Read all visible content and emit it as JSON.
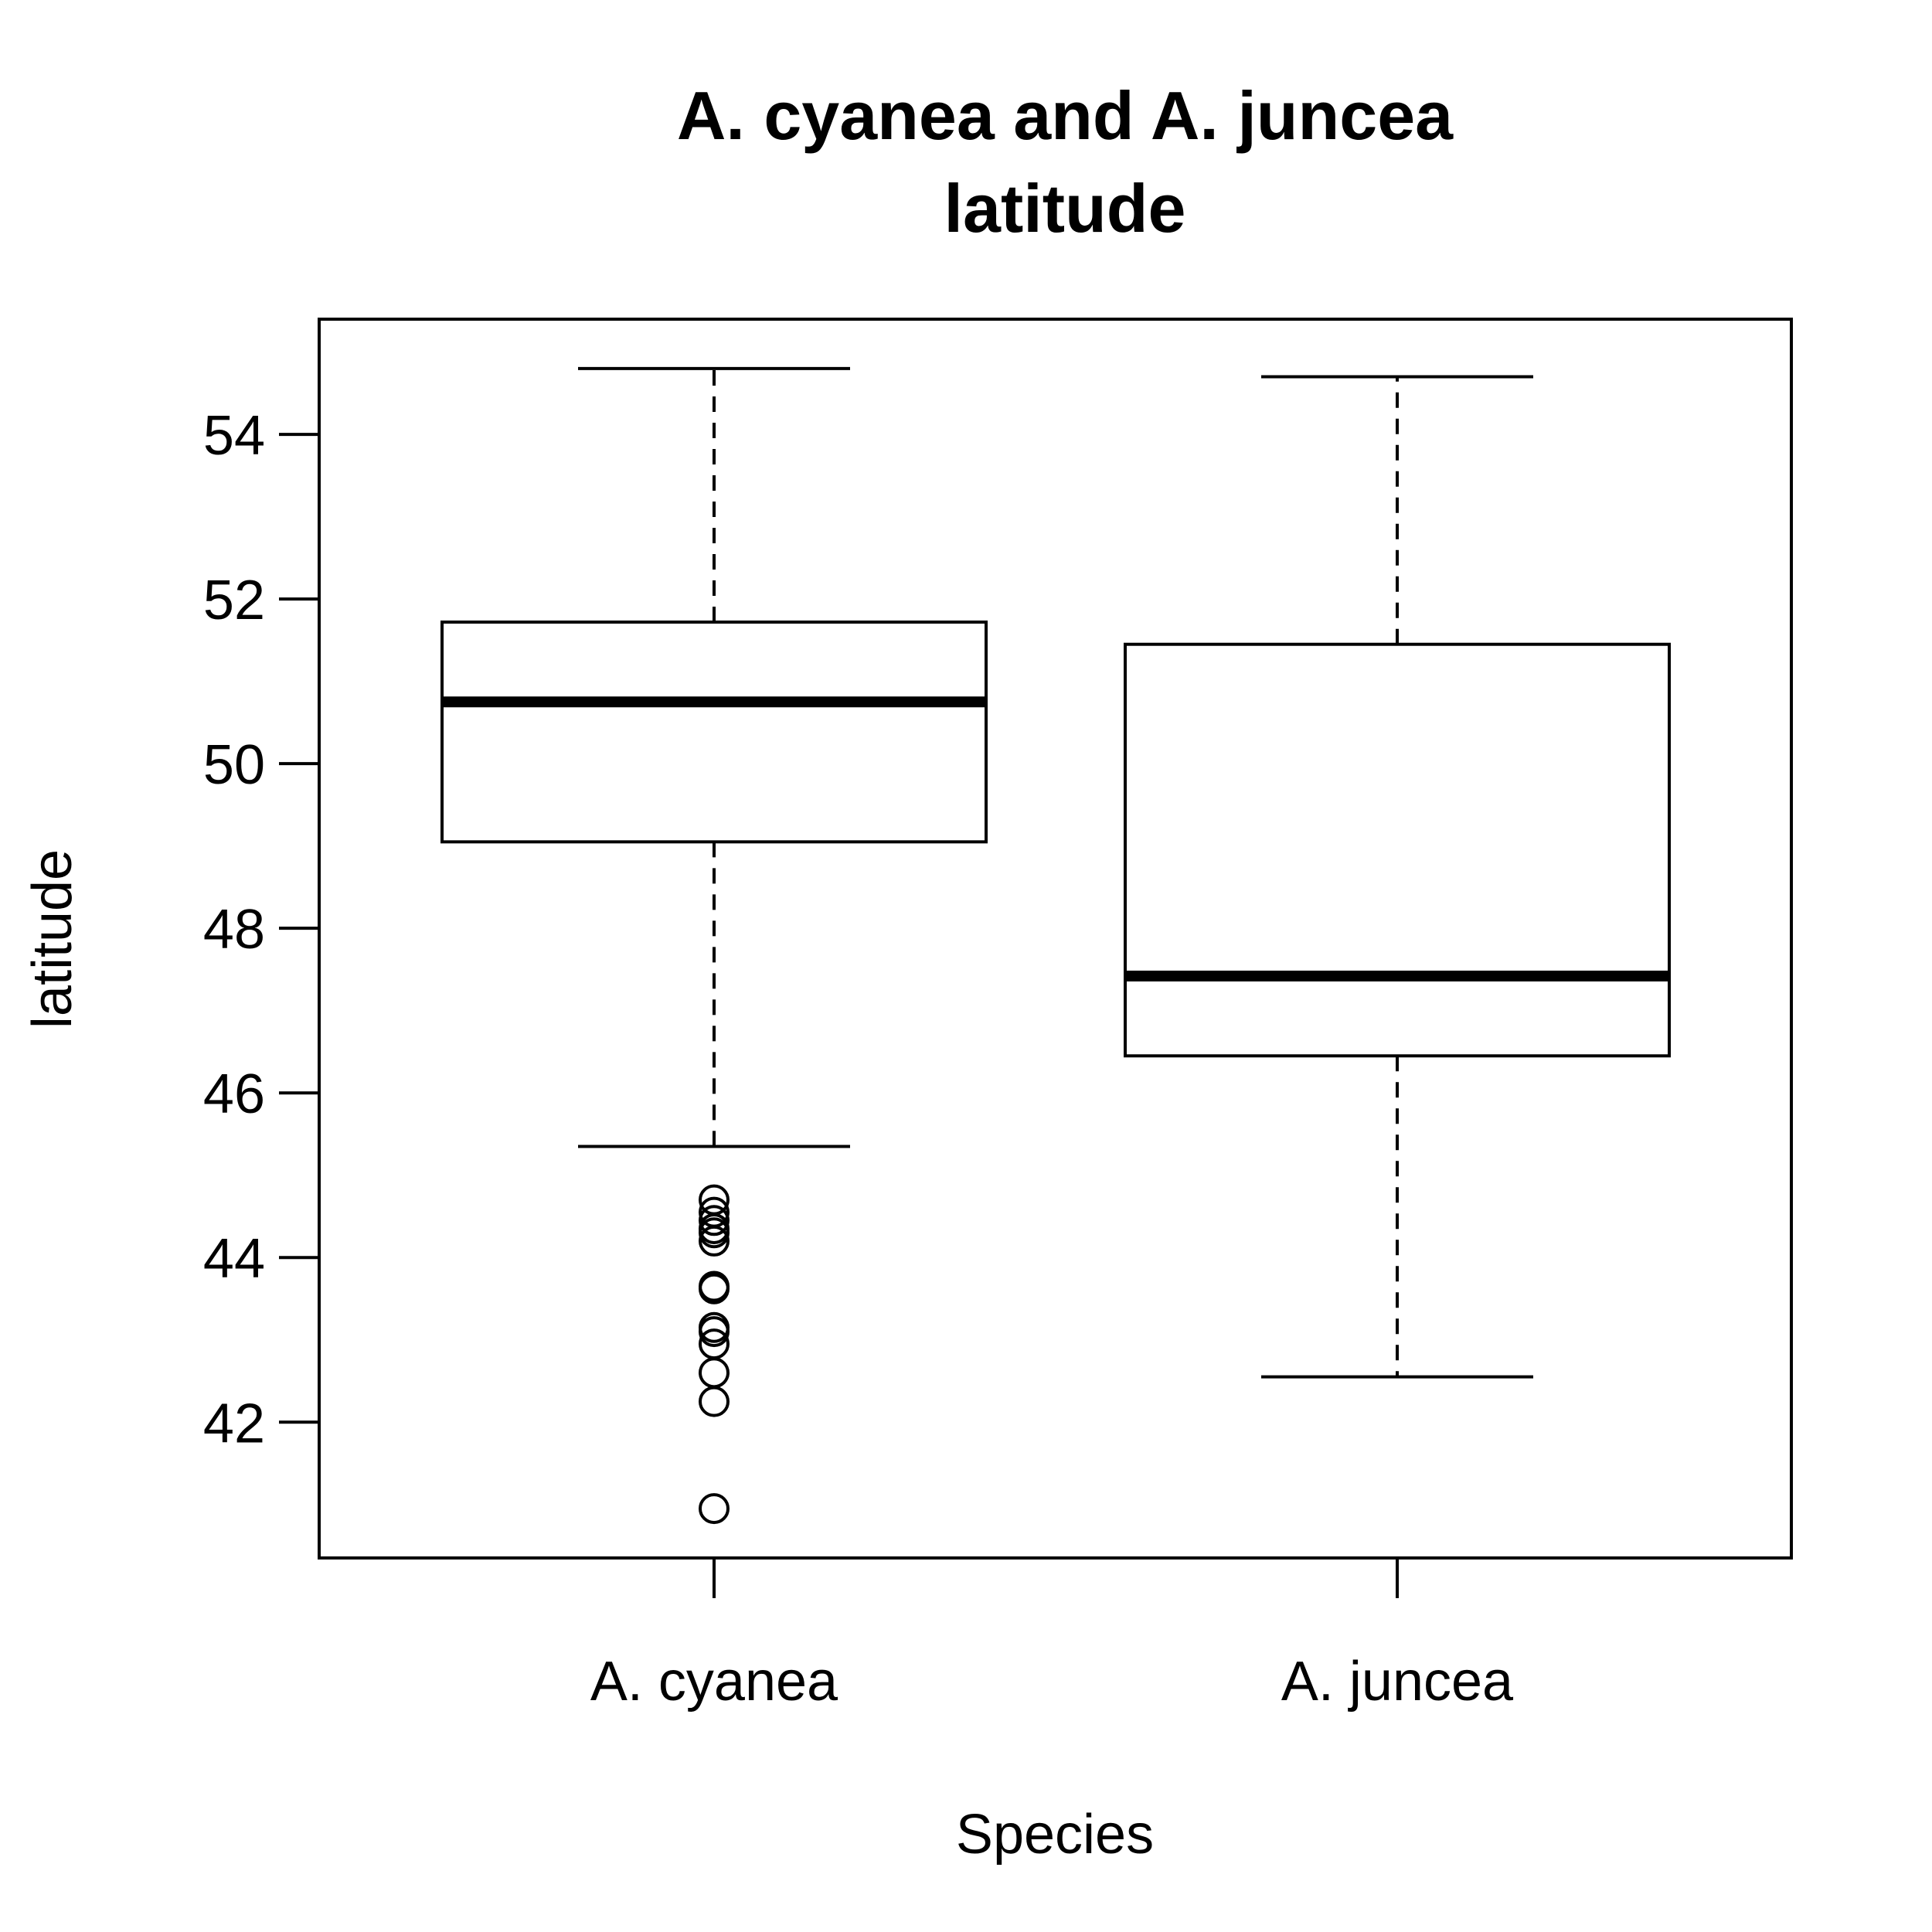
{
  "chart_data": {
    "type": "boxplot",
    "title": [
      "A. cyanea and A. juncea",
      "latitude"
    ],
    "xlabel": "Species",
    "ylabel": "latitude",
    "categories": [
      "A. cyanea",
      "A. juncea"
    ],
    "yticks": [
      42,
      44,
      46,
      48,
      50,
      52,
      54
    ],
    "ylim": [
      40.35,
      55.4
    ],
    "grid": false,
    "legend": "none",
    "boxes": [
      {
        "category": "A. cyanea",
        "whisker_low": 45.35,
        "q1": 49.05,
        "median": 50.75,
        "q3": 51.72,
        "whisker_high": 54.8,
        "outliers": [
          44.7,
          44.55,
          44.45,
          44.35,
          44.3,
          44.2,
          43.65,
          43.62,
          43.15,
          43.1,
          42.95,
          42.6,
          42.25,
          40.95
        ]
      },
      {
        "category": "A. juncea",
        "whisker_low": 42.55,
        "q1": 46.45,
        "median": 47.42,
        "q3": 51.45,
        "whisker_high": 54.7,
        "outliers": []
      }
    ],
    "colors": {
      "line": "#000000",
      "box_fill": "#ffffff",
      "background": "#ffffff"
    }
  }
}
